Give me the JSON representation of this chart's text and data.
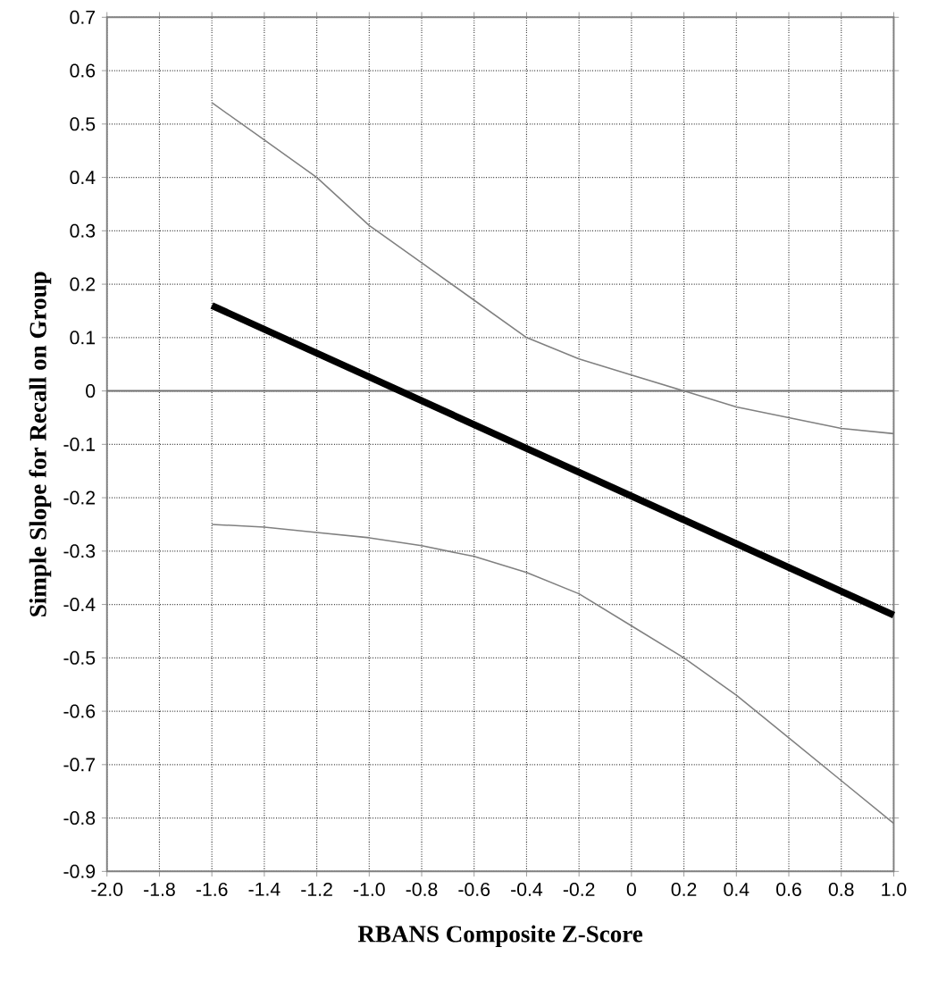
{
  "chart_data": {
    "type": "line",
    "xlabel": "RBANS Composite Z-Score",
    "ylabel": "Simple Slope for Recall on Group",
    "xlim": [
      -2.0,
      1.0
    ],
    "xticks": [
      {
        "value": -2.0,
        "label": "-2.0"
      },
      {
        "value": -1.8,
        "label": "-1.8"
      },
      {
        "value": -1.6,
        "label": "-1.6"
      },
      {
        "value": -1.4,
        "label": "-1.4"
      },
      {
        "value": -1.2,
        "label": "-1.2"
      },
      {
        "value": -1.0,
        "label": "-1.0"
      },
      {
        "value": -0.8,
        "label": "-0.8"
      },
      {
        "value": -0.6,
        "label": "-0.6"
      },
      {
        "value": -0.4,
        "label": "-0.4"
      },
      {
        "value": -0.2,
        "label": "-0.2"
      },
      0,
      {
        "value": 0.2,
        "label": "0.2"
      },
      {
        "value": 0.4,
        "label": "0.4"
      },
      {
        "value": 0.6,
        "label": "0.6"
      },
      {
        "value": 0.8,
        "label": "0.8"
      },
      {
        "value": 1.0,
        "label": "1.0"
      }
    ],
    "ylim": [
      -0.9,
      0.7
    ],
    "yticks": [
      {
        "value": -0.9,
        "label": "-0.9"
      },
      {
        "value": -0.8,
        "label": "-0.8"
      },
      {
        "value": -0.7,
        "label": "-0.7"
      },
      {
        "value": -0.6,
        "label": "-0.6"
      },
      {
        "value": -0.5,
        "label": "-0.5"
      },
      {
        "value": -0.4,
        "label": "-0.4"
      },
      {
        "value": -0.3,
        "label": "-0.3"
      },
      {
        "value": -0.2,
        "label": "-0.2"
      },
      {
        "value": -0.1,
        "label": "-0.1"
      },
      0,
      {
        "value": 0.1,
        "label": "0.1"
      },
      {
        "value": 0.2,
        "label": "0.2"
      },
      {
        "value": 0.3,
        "label": "0.3"
      },
      {
        "value": 0.4,
        "label": "0.4"
      },
      {
        "value": 0.5,
        "label": "0.5"
      },
      {
        "value": 0.6,
        "label": "0.6"
      },
      {
        "value": 0.7,
        "label": "0.7"
      }
    ],
    "grid": true,
    "ref_lines": [
      {
        "axis": "y",
        "value": 0,
        "color": "#707070",
        "line_style": "solid"
      }
    ],
    "series": [
      {
        "color": "#000000",
        "x": [
          -1.6,
          1.0
        ],
        "values": [
          0.16,
          -0.42
        ]
      },
      {
        "color": "#808080",
        "x": [
          -1.6,
          -1.4,
          -1.2,
          -1.0,
          -0.8,
          -0.6,
          -0.4,
          -0.2,
          0,
          0.2,
          0.4,
          0.6,
          0.8,
          1.0
        ],
        "values": [
          0.54,
          0.47,
          0.4,
          0.31,
          0.24,
          0.17,
          0.1,
          0.06,
          0.03,
          0.0,
          -0.03,
          -0.05,
          -0.07,
          -0.08
        ]
      },
      {
        "color": "#808080",
        "x": [
          -1.6,
          -1.4,
          -1.2,
          -1.0,
          -0.8,
          -0.6,
          -0.4,
          -0.2,
          0,
          0.2,
          0.4,
          0.6,
          0.8,
          1.0
        ],
        "values": [
          -0.25,
          -0.255,
          -0.265,
          -0.275,
          -0.29,
          -0.31,
          -0.34,
          -0.38,
          -0.44,
          -0.5,
          -0.57,
          -0.65,
          -0.73,
          -0.81
        ]
      }
    ]
  }
}
